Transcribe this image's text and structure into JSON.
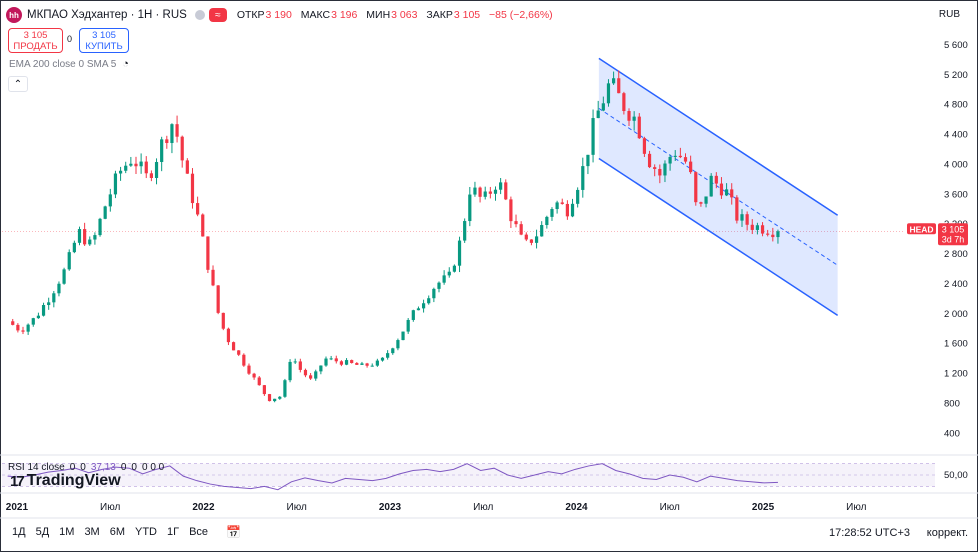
{
  "header": {
    "logo": "hh",
    "symbol": "МКПАО Хэдхантер · 1Н · RUS",
    "wave_icon": "≈",
    "open_label": "ОТКР",
    "open": "3 190",
    "high_label": "МАКС",
    "high": "3 196",
    "low_label": "МИН",
    "low": "3 063",
    "close_label": "ЗАКР",
    "close": "3 105",
    "change": "−85 (−2,66%)",
    "currency": "RUB"
  },
  "trade": {
    "sell_price": "3 105",
    "sell_label": "ПРОДАТЬ",
    "spread": "0",
    "buy_price": "3 105",
    "buy_label": "КУПИТЬ"
  },
  "indicator": {
    "label": "EMA 200 close 0 SMA 5"
  },
  "price_tag": {
    "name": "HEAD",
    "value": "3 105",
    "countdown": "3d 7h"
  },
  "rsi": {
    "label": "RSI 14 close",
    "z1": "0",
    "z2": "0",
    "value": "37,13",
    "v2": "0",
    "v3": "0",
    "extra": "0 0 0",
    "level": "50,00"
  },
  "brand": "TradingView",
  "toolbar": {
    "timeframes": [
      "1Д",
      "5Д",
      "1М",
      "3М",
      "6М",
      "YTD",
      "1Г",
      "Все"
    ],
    "clock": "17:28:52 UTC+3",
    "correction": "коррект."
  },
  "colors": {
    "up": "#089981",
    "down": "#f23645",
    "channel": "#2962ff",
    "rsi": "#7e57c2"
  },
  "chart_data": {
    "type": "candlestick",
    "y_ticks": [
      400,
      800,
      1200,
      1600,
      2000,
      2400,
      2800,
      3200,
      3600,
      4000,
      4400,
      4800,
      5200,
      5600
    ],
    "y_tick_labels": [
      "400",
      "800",
      "1 200",
      "1 600",
      "2 000",
      "2 400",
      "2 800",
      "3 200",
      "3 600",
      "4 000",
      "4 400",
      "4 800",
      "5 200",
      "5 600"
    ],
    "ylim": [
      150,
      5800
    ],
    "x_tick_labels": [
      "2021",
      "Июл",
      "2022",
      "Июл",
      "2023",
      "Июл",
      "2024",
      "Июл",
      "2025",
      "Июл"
    ],
    "xlim": [
      2020.92,
      2025.67
    ],
    "x_tick_values": [
      2021.0,
      2021.5,
      2022.0,
      2022.5,
      2023.0,
      2023.5,
      2024.0,
      2024.5,
      2025.0,
      2025.5
    ],
    "price_path": [
      [
        2020.95,
        1900
      ],
      [
        2021.02,
        1780
      ],
      [
        2021.1,
        1950
      ],
      [
        2021.18,
        2250
      ],
      [
        2021.26,
        2600
      ],
      [
        2021.33,
        3100
      ],
      [
        2021.4,
        2900
      ],
      [
        2021.48,
        3500
      ],
      [
        2021.55,
        3900
      ],
      [
        2021.62,
        4100
      ],
      [
        2021.7,
        3800
      ],
      [
        2021.78,
        4300
      ],
      [
        2021.84,
        4600
      ],
      [
        2021.9,
        3900
      ],
      [
        2021.96,
        3400
      ],
      [
        2022.02,
        2700
      ],
      [
        2022.08,
        2000
      ],
      [
        2022.12,
        1700
      ],
      [
        2022.2,
        1400
      ],
      [
        2022.28,
        1100
      ],
      [
        2022.35,
        850
      ],
      [
        2022.42,
        900
      ],
      [
        2022.47,
        1450
      ],
      [
        2022.52,
        1250
      ],
      [
        2022.58,
        1100
      ],
      [
        2022.65,
        1400
      ],
      [
        2022.75,
        1350
      ],
      [
        2022.85,
        1300
      ],
      [
        2022.95,
        1350
      ],
      [
        2023.05,
        1700
      ],
      [
        2023.15,
        2100
      ],
      [
        2023.25,
        2400
      ],
      [
        2023.32,
        2500
      ],
      [
        2023.38,
        3000
      ],
      [
        2023.43,
        3700
      ],
      [
        2023.5,
        3500
      ],
      [
        2023.58,
        3800
      ],
      [
        2023.65,
        3300
      ],
      [
        2023.72,
        2900
      ],
      [
        2023.8,
        3100
      ],
      [
        2023.88,
        3500
      ],
      [
        2023.95,
        3400
      ],
      [
        2024.03,
        3900
      ],
      [
        2024.1,
        4600
      ],
      [
        2024.18,
        5100
      ],
      [
        2024.25,
        4800
      ],
      [
        2024.32,
        4600
      ],
      [
        2024.38,
        4100
      ],
      [
        2024.45,
        3850
      ],
      [
        2024.52,
        4200
      ],
      [
        2024.6,
        4000
      ],
      [
        2024.65,
        3300
      ],
      [
        2024.72,
        3800
      ],
      [
        2024.8,
        3650
      ],
      [
        2024.86,
        3300
      ],
      [
        2024.92,
        3200
      ],
      [
        2025.0,
        3150
      ],
      [
        2025.08,
        3105
      ]
    ],
    "rsi_values": [
      48,
      46,
      50,
      55,
      58,
      62,
      54,
      60,
      64,
      62,
      52,
      60,
      66,
      48,
      40,
      34,
      30,
      28,
      26,
      30,
      24,
      38,
      45,
      40,
      36,
      44,
      42,
      40,
      44,
      52,
      58,
      60,
      56,
      60,
      70,
      58,
      62,
      50,
      44,
      50,
      56,
      52,
      60,
      66,
      70,
      58,
      52,
      44,
      42,
      50,
      46,
      38,
      48,
      44,
      40,
      38,
      36,
      37
    ],
    "channel": {
      "upper": [
        [
          2024.12,
          5420
        ],
        [
          2025.4,
          3320
        ]
      ],
      "lower": [
        [
          2024.12,
          4080
        ],
        [
          2025.4,
          1980
        ]
      ]
    },
    "current_price": 3105
  }
}
